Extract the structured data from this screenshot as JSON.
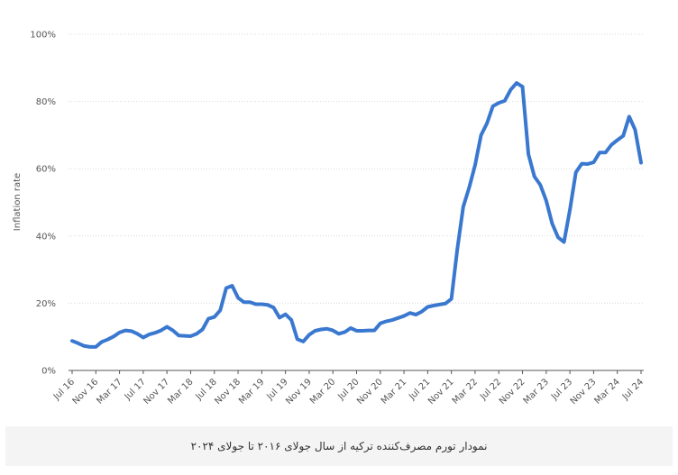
{
  "caption": "نمودار تورم مصرف‌کننده ترکیه از سال جولای ۲۰۱۶ تا جولای ۲۰۲۴",
  "chart_data": {
    "type": "line",
    "title": "",
    "ylabel": "Inflation rate",
    "xlabel": "",
    "ylim": [
      0,
      100
    ],
    "y_ticks": [
      "0%",
      "20%",
      "40%",
      "60%",
      "80%",
      "100%"
    ],
    "y_tick_values": [
      0,
      20,
      40,
      60,
      80,
      100
    ],
    "x_ticks": [
      "Jul 16",
      "Nov 16",
      "Mar 17",
      "Jul 17",
      "Nov 17",
      "Mar 18",
      "Jul 18",
      "Nov 18",
      "Mar 19",
      "Jul 19",
      "Nov 19",
      "Mar 20",
      "Jul 20",
      "Nov 20",
      "Mar 21",
      "Jul 21",
      "Nov 21",
      "Mar 22",
      "Jul 22",
      "Nov 22",
      "Mar 23",
      "Jul 23",
      "Nov 23",
      "Mar 24",
      "Jul 24"
    ],
    "grid": true,
    "line_color": "#3a78d0",
    "series": [
      {
        "x_start": "Jul 16",
        "frequency": "monthly",
        "values": [
          8.8,
          8.1,
          7.3,
          7.0,
          7.0,
          8.5,
          9.2,
          10.1,
          11.3,
          11.9,
          11.7,
          10.9,
          9.8,
          10.7,
          11.2,
          11.9,
          13.0,
          11.9,
          10.4,
          10.3,
          10.2,
          10.9,
          12.2,
          15.4,
          15.9,
          17.9,
          24.5,
          25.2,
          21.6,
          20.3,
          20.3,
          19.7,
          19.7,
          19.5,
          18.7,
          15.7,
          16.7,
          15.0,
          9.3,
          8.6,
          10.6,
          11.8,
          12.2,
          12.4,
          11.9,
          10.9,
          11.4,
          12.6,
          11.8,
          11.8,
          11.9,
          11.9,
          14.0,
          14.6,
          15.0,
          15.6,
          16.2,
          17.1,
          16.6,
          17.5,
          18.9,
          19.3,
          19.6,
          19.9,
          21.3,
          36.1,
          48.7,
          54.4,
          61.1,
          69.97,
          73.5,
          78.6,
          79.6,
          80.2,
          83.5,
          85.5,
          84.4,
          64.3,
          57.7,
          55.2,
          50.5,
          43.7,
          39.6,
          38.2,
          47.8,
          58.9,
          61.5,
          61.4,
          61.9,
          64.8,
          64.8,
          67.1,
          68.5,
          69.8,
          75.5,
          71.6,
          61.8
        ]
      }
    ]
  }
}
